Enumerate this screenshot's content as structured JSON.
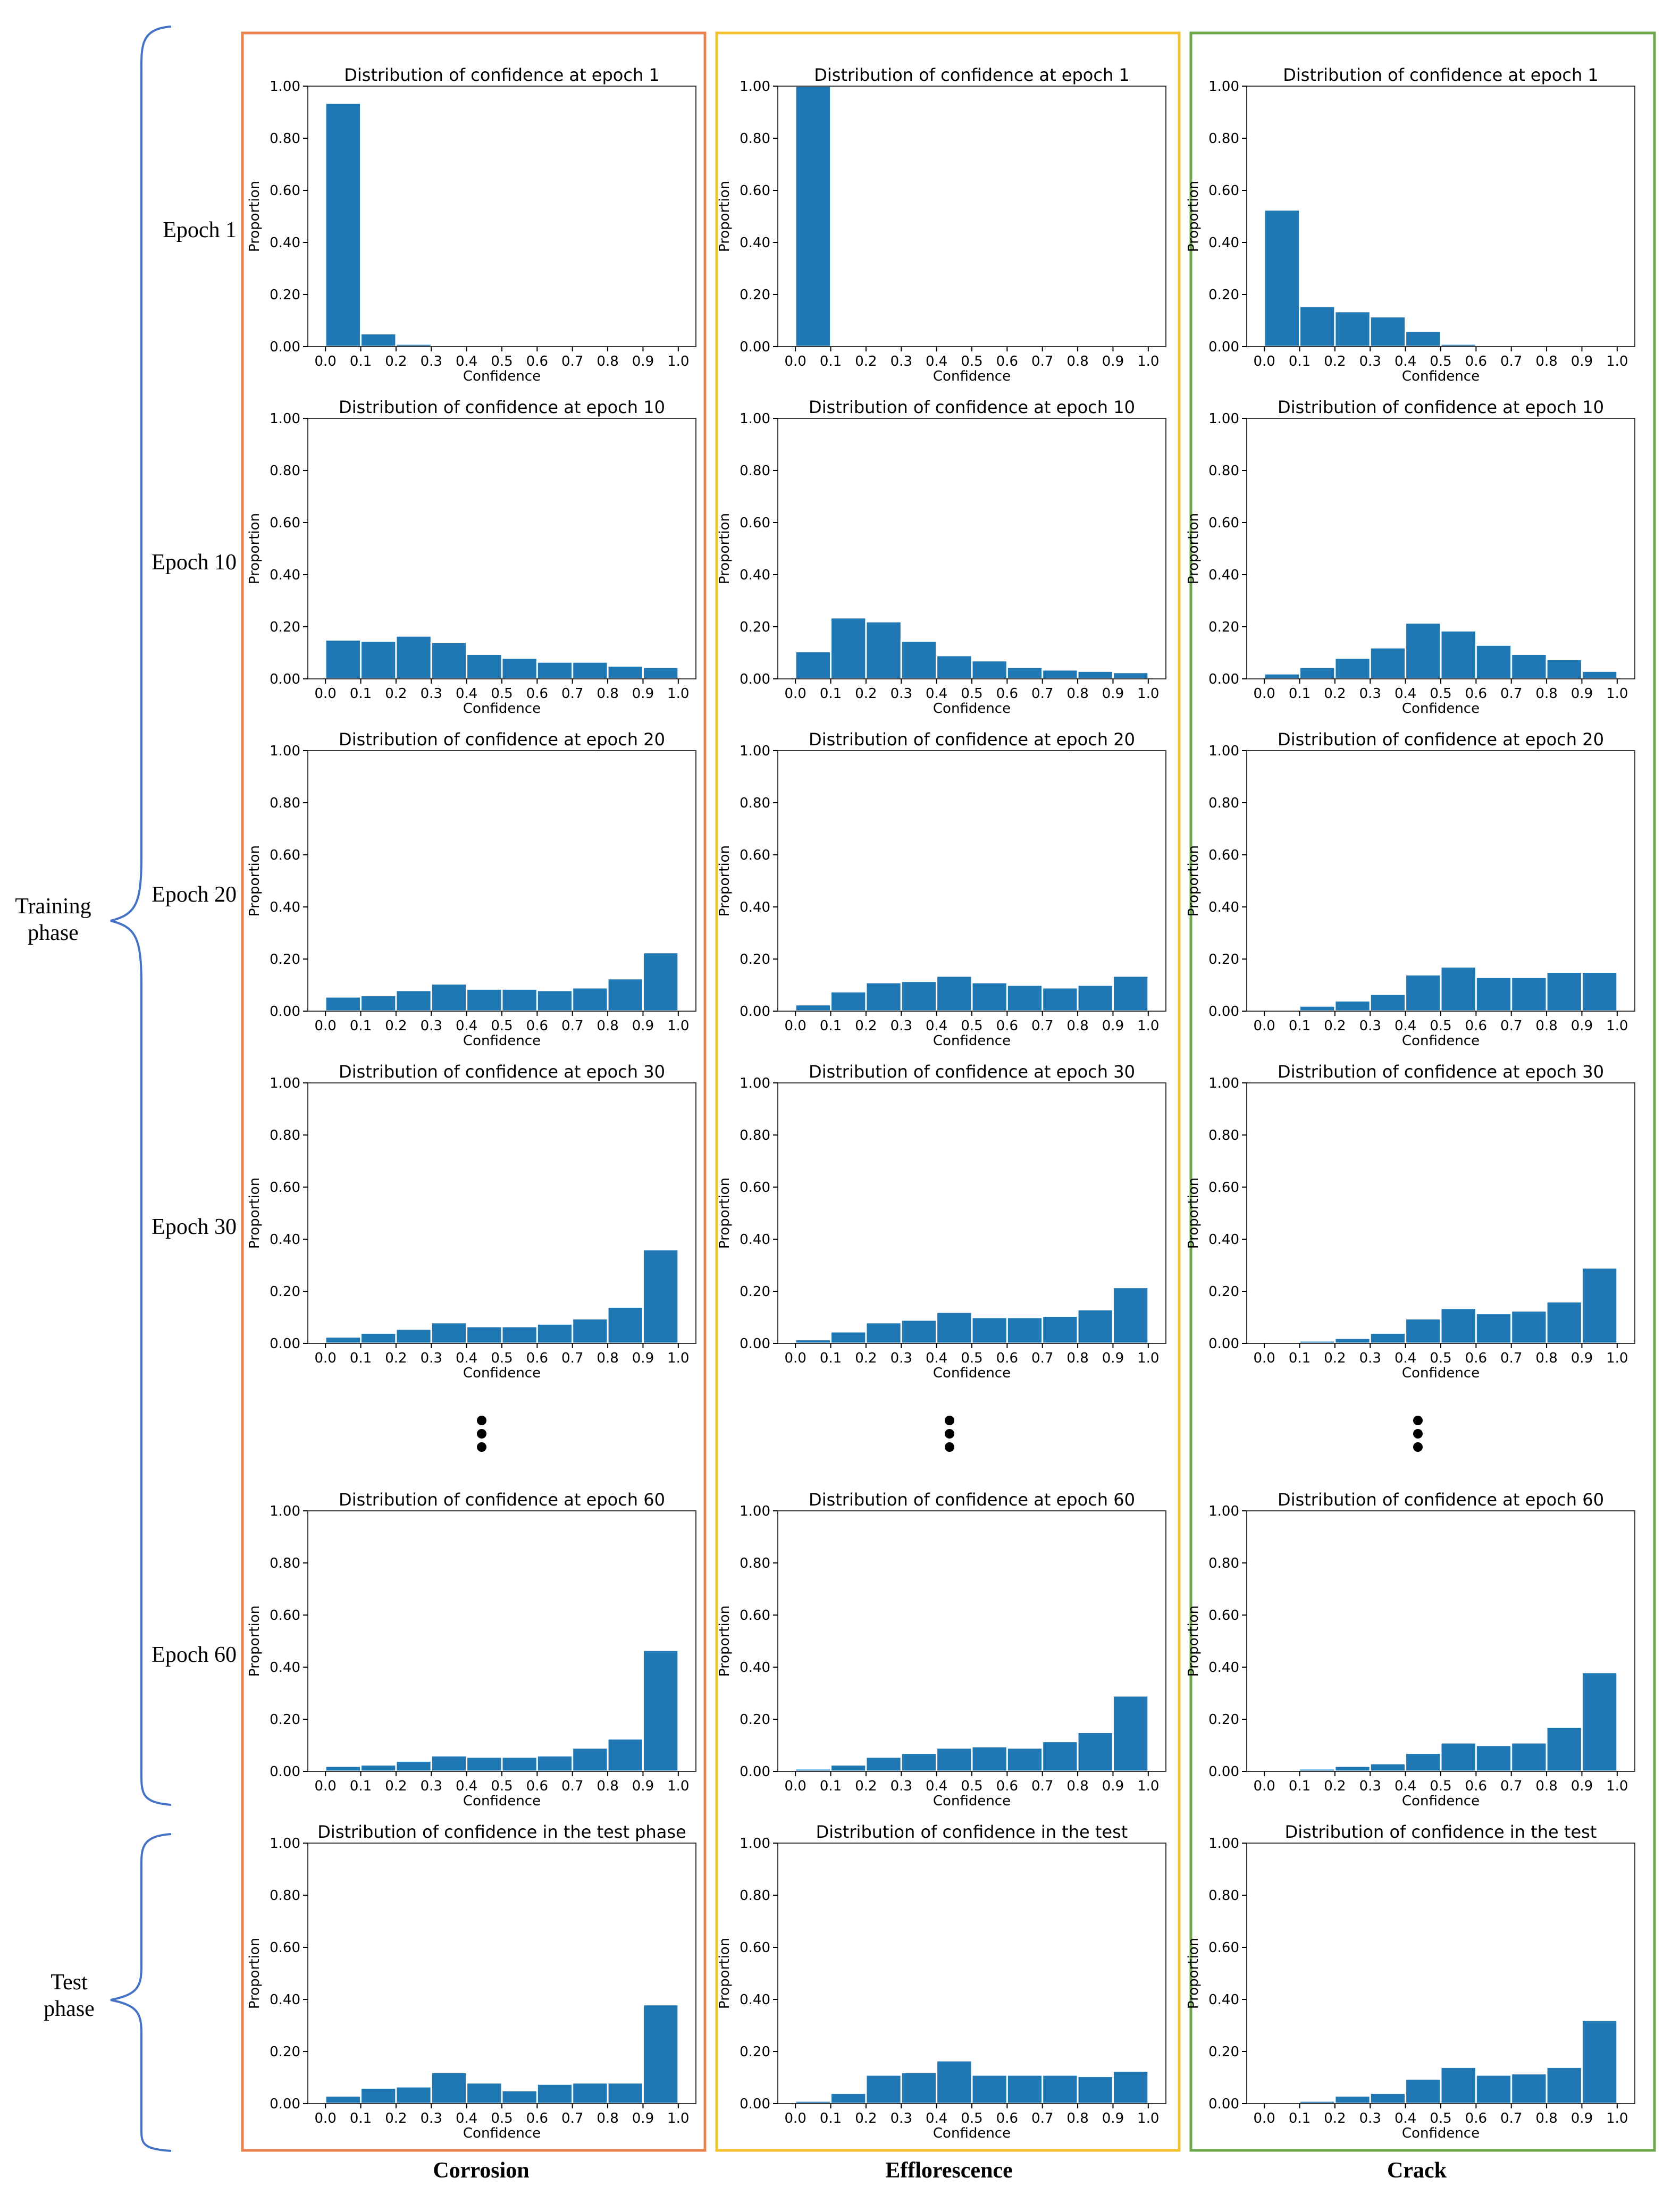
{
  "colors": {
    "bar": "#1f77b4",
    "corrosion_frame": "#E8834E",
    "efflorescence_frame": "#F2C230",
    "crack_frame": "#6FA84C",
    "brace": "#4472C4"
  },
  "columns": [
    "Corrosion",
    "Efflorescence",
    "Crack"
  ],
  "rows": [
    "Epoch 1",
    "Epoch 10",
    "Epoch 20",
    "Epoch 30",
    "Epoch 60",
    ""
  ],
  "phases": {
    "training": [
      "Training",
      "phase"
    ],
    "test": [
      "Test",
      "phase"
    ]
  },
  "ellipsis_icon": "vertical-ellipsis-icon",
  "chart_data": [
    {
      "id": "corrosion-epoch1",
      "type": "bar",
      "title": "Distribution of confidence at epoch 1",
      "xlabel": "Confidence",
      "ylabel": "Proportion",
      "ylim": [
        0,
        1
      ],
      "xlim": [
        -0.05,
        1.05
      ],
      "xticks": [
        "0.0",
        "0.1",
        "0.2",
        "0.3",
        "0.4",
        "0.5",
        "0.6",
        "0.7",
        "0.8",
        "0.9",
        "1.0"
      ],
      "yticks": [
        "0.00",
        "0.20",
        "0.40",
        "0.60",
        "0.80",
        "1.00"
      ],
      "bin_width": 0.1,
      "bin_starts": [
        0,
        0.1,
        0.2,
        0.3,
        0.4,
        0.5,
        0.6,
        0.7,
        0.8,
        0.9
      ],
      "values": [
        0.935,
        0.05,
        0.01,
        0.002,
        0.001,
        0,
        0,
        0,
        0,
        0
      ]
    },
    {
      "id": "efflorescence-epoch1",
      "type": "bar",
      "title": "Distribution of confidence at epoch 1",
      "xlabel": "Confidence",
      "ylabel": "Proportion",
      "ylim": [
        0,
        1
      ],
      "xlim": [
        -0.05,
        1.05
      ],
      "xticks": [
        "0.0",
        "0.1",
        "0.2",
        "0.3",
        "0.4",
        "0.5",
        "0.6",
        "0.7",
        "0.8",
        "0.9",
        "1.0"
      ],
      "yticks": [
        "0.00",
        "0.20",
        "0.40",
        "0.60",
        "0.80",
        "1.00"
      ],
      "bin_width": 0.1,
      "bin_starts": [
        0,
        0.1,
        0.2,
        0.3,
        0.4,
        0.5,
        0.6,
        0.7,
        0.8,
        0.9
      ],
      "values": [
        1.0,
        0,
        0,
        0,
        0,
        0,
        0,
        0,
        0,
        0
      ]
    },
    {
      "id": "crack-epoch1",
      "type": "bar",
      "title": "Distribution of confidence at epoch 1",
      "xlabel": "Confidence",
      "ylabel": "Proportion",
      "ylim": [
        0,
        1
      ],
      "xlim": [
        -0.05,
        1.05
      ],
      "xticks": [
        "0.0",
        "0.1",
        "0.2",
        "0.3",
        "0.4",
        "0.5",
        "0.6",
        "0.7",
        "0.8",
        "0.9",
        "1.0"
      ],
      "yticks": [
        "0.00",
        "0.20",
        "0.40",
        "0.60",
        "0.80",
        "1.00"
      ],
      "bin_width": 0.1,
      "bin_starts": [
        0,
        0.1,
        0.2,
        0.3,
        0.4,
        0.5,
        0.6,
        0.7,
        0.8,
        0.9
      ],
      "values": [
        0.525,
        0.155,
        0.135,
        0.115,
        0.06,
        0.01,
        0,
        0,
        0,
        0
      ]
    },
    {
      "id": "corrosion-epoch10",
      "type": "bar",
      "title": "Distribution of confidence at epoch 10",
      "xlabel": "Confidence",
      "ylabel": "Proportion",
      "ylim": [
        0,
        1
      ],
      "xlim": [
        -0.05,
        1.05
      ],
      "xticks": [
        "0.0",
        "0.1",
        "0.2",
        "0.3",
        "0.4",
        "0.5",
        "0.6",
        "0.7",
        "0.8",
        "0.9",
        "1.0"
      ],
      "yticks": [
        "0.00",
        "0.20",
        "0.40",
        "0.60",
        "0.80",
        "1.00"
      ],
      "bin_width": 0.1,
      "bin_starts": [
        0,
        0.1,
        0.2,
        0.3,
        0.4,
        0.5,
        0.6,
        0.7,
        0.8,
        0.9
      ],
      "values": [
        0.15,
        0.145,
        0.165,
        0.14,
        0.095,
        0.08,
        0.065,
        0.065,
        0.05,
        0.045
      ]
    },
    {
      "id": "efflorescence-epoch10",
      "type": "bar",
      "title": "Distribution of confidence at epoch 10",
      "xlabel": "Confidence",
      "ylabel": "Proportion",
      "ylim": [
        0,
        1
      ],
      "xlim": [
        -0.05,
        1.05
      ],
      "xticks": [
        "0.0",
        "0.1",
        "0.2",
        "0.3",
        "0.4",
        "0.5",
        "0.6",
        "0.7",
        "0.8",
        "0.9",
        "1.0"
      ],
      "yticks": [
        "0.00",
        "0.20",
        "0.40",
        "0.60",
        "0.80",
        "1.00"
      ],
      "bin_width": 0.1,
      "bin_starts": [
        0,
        0.1,
        0.2,
        0.3,
        0.4,
        0.5,
        0.6,
        0.7,
        0.8,
        0.9
      ],
      "values": [
        0.105,
        0.235,
        0.22,
        0.145,
        0.09,
        0.07,
        0.045,
        0.035,
        0.03,
        0.025
      ]
    },
    {
      "id": "crack-epoch10",
      "type": "bar",
      "title": "Distribution of confidence at epoch 10",
      "xlabel": "Confidence",
      "ylabel": "Proportion",
      "ylim": [
        0,
        1
      ],
      "xlim": [
        -0.05,
        1.05
      ],
      "xticks": [
        "0.0",
        "0.1",
        "0.2",
        "0.3",
        "0.4",
        "0.5",
        "0.6",
        "0.7",
        "0.8",
        "0.9",
        "1.0"
      ],
      "yticks": [
        "0.00",
        "0.20",
        "0.40",
        "0.60",
        "0.80",
        "1.00"
      ],
      "bin_width": 0.1,
      "bin_starts": [
        0,
        0.1,
        0.2,
        0.3,
        0.4,
        0.5,
        0.6,
        0.7,
        0.8,
        0.9
      ],
      "values": [
        0.02,
        0.045,
        0.08,
        0.12,
        0.215,
        0.185,
        0.13,
        0.095,
        0.075,
        0.03
      ]
    },
    {
      "id": "corrosion-epoch20",
      "type": "bar",
      "title": "Distribution of confidence at epoch 20",
      "xlabel": "Confidence",
      "ylabel": "Proportion",
      "ylim": [
        0,
        1
      ],
      "xlim": [
        -0.05,
        1.05
      ],
      "xticks": [
        "0.0",
        "0.1",
        "0.2",
        "0.3",
        "0.4",
        "0.5",
        "0.6",
        "0.7",
        "0.8",
        "0.9",
        "1.0"
      ],
      "yticks": [
        "0.00",
        "0.20",
        "0.40",
        "0.60",
        "0.80",
        "1.00"
      ],
      "bin_width": 0.1,
      "bin_starts": [
        0,
        0.1,
        0.2,
        0.3,
        0.4,
        0.5,
        0.6,
        0.7,
        0.8,
        0.9
      ],
      "values": [
        0.055,
        0.06,
        0.08,
        0.105,
        0.085,
        0.085,
        0.08,
        0.09,
        0.125,
        0.225
      ]
    },
    {
      "id": "efflorescence-epoch20",
      "type": "bar",
      "title": "Distribution of confidence at epoch 20",
      "xlabel": "Confidence",
      "ylabel": "Proportion",
      "ylim": [
        0,
        1
      ],
      "xlim": [
        -0.05,
        1.05
      ],
      "xticks": [
        "0.0",
        "0.1",
        "0.2",
        "0.3",
        "0.4",
        "0.5",
        "0.6",
        "0.7",
        "0.8",
        "0.9",
        "1.0"
      ],
      "yticks": [
        "0.00",
        "0.20",
        "0.40",
        "0.60",
        "0.80",
        "1.00"
      ],
      "bin_width": 0.1,
      "bin_starts": [
        0,
        0.1,
        0.2,
        0.3,
        0.4,
        0.5,
        0.6,
        0.7,
        0.8,
        0.9
      ],
      "values": [
        0.025,
        0.075,
        0.11,
        0.115,
        0.135,
        0.11,
        0.1,
        0.09,
        0.1,
        0.135
      ]
    },
    {
      "id": "crack-epoch20",
      "type": "bar",
      "title": "Distribution of confidence at epoch 20",
      "xlabel": "Confidence",
      "ylabel": "Proportion",
      "ylim": [
        0,
        1
      ],
      "xlim": [
        -0.05,
        1.05
      ],
      "xticks": [
        "0.0",
        "0.1",
        "0.2",
        "0.3",
        "0.4",
        "0.5",
        "0.6",
        "0.7",
        "0.8",
        "0.9",
        "1.0"
      ],
      "yticks": [
        "0.00",
        "0.20",
        "0.40",
        "0.60",
        "0.80",
        "1.00"
      ],
      "bin_width": 0.1,
      "bin_starts": [
        0,
        0.1,
        0.2,
        0.3,
        0.4,
        0.5,
        0.6,
        0.7,
        0.8,
        0.9
      ],
      "values": [
        0.005,
        0.02,
        0.04,
        0.065,
        0.14,
        0.17,
        0.13,
        0.13,
        0.15,
        0.15
      ]
    },
    {
      "id": "corrosion-epoch30",
      "type": "bar",
      "title": "Distribution of confidence at epoch 30",
      "xlabel": "Confidence",
      "ylabel": "Proportion",
      "ylim": [
        0,
        1
      ],
      "xlim": [
        -0.05,
        1.05
      ],
      "xticks": [
        "0.0",
        "0.1",
        "0.2",
        "0.3",
        "0.4",
        "0.5",
        "0.6",
        "0.7",
        "0.8",
        "0.9",
        "1.0"
      ],
      "yticks": [
        "0.00",
        "0.20",
        "0.40",
        "0.60",
        "0.80",
        "1.00"
      ],
      "bin_width": 0.1,
      "bin_starts": [
        0,
        0.1,
        0.2,
        0.3,
        0.4,
        0.5,
        0.6,
        0.7,
        0.8,
        0.9
      ],
      "values": [
        0.025,
        0.04,
        0.055,
        0.08,
        0.065,
        0.065,
        0.075,
        0.095,
        0.14,
        0.36
      ]
    },
    {
      "id": "efflorescence-epoch30",
      "type": "bar",
      "title": "Distribution of confidence at epoch 30",
      "xlabel": "Confidence",
      "ylabel": "Proportion",
      "ylim": [
        0,
        1
      ],
      "xlim": [
        -0.05,
        1.05
      ],
      "xticks": [
        "0.0",
        "0.1",
        "0.2",
        "0.3",
        "0.4",
        "0.5",
        "0.6",
        "0.7",
        "0.8",
        "0.9",
        "1.0"
      ],
      "yticks": [
        "0.00",
        "0.20",
        "0.40",
        "0.60",
        "0.80",
        "1.00"
      ],
      "bin_width": 0.1,
      "bin_starts": [
        0,
        0.1,
        0.2,
        0.3,
        0.4,
        0.5,
        0.6,
        0.7,
        0.8,
        0.9
      ],
      "values": [
        0.015,
        0.045,
        0.08,
        0.09,
        0.12,
        0.1,
        0.1,
        0.105,
        0.13,
        0.215
      ]
    },
    {
      "id": "crack-epoch30",
      "type": "bar",
      "title": "Distribution of confidence at epoch 30",
      "xlabel": "Confidence",
      "ylabel": "Proportion",
      "ylim": [
        0,
        1
      ],
      "xlim": [
        -0.05,
        1.05
      ],
      "xticks": [
        "0.0",
        "0.1",
        "0.2",
        "0.3",
        "0.4",
        "0.5",
        "0.6",
        "0.7",
        "0.8",
        "0.9",
        "1.0"
      ],
      "yticks": [
        "0.00",
        "0.20",
        "0.40",
        "0.60",
        "0.80",
        "1.00"
      ],
      "bin_width": 0.1,
      "bin_starts": [
        0,
        0.1,
        0.2,
        0.3,
        0.4,
        0.5,
        0.6,
        0.7,
        0.8,
        0.9
      ],
      "values": [
        0.003,
        0.01,
        0.02,
        0.04,
        0.095,
        0.135,
        0.115,
        0.125,
        0.16,
        0.29
      ]
    },
    {
      "id": "corrosion-epoch60",
      "type": "bar",
      "title": "Distribution of confidence at epoch 60",
      "xlabel": "Confidence",
      "ylabel": "Proportion",
      "ylim": [
        0,
        1
      ],
      "xlim": [
        -0.05,
        1.05
      ],
      "xticks": [
        "0.0",
        "0.1",
        "0.2",
        "0.3",
        "0.4",
        "0.5",
        "0.6",
        "0.7",
        "0.8",
        "0.9",
        "1.0"
      ],
      "yticks": [
        "0.00",
        "0.20",
        "0.40",
        "0.60",
        "0.80",
        "1.00"
      ],
      "bin_width": 0.1,
      "bin_starts": [
        0,
        0.1,
        0.2,
        0.3,
        0.4,
        0.5,
        0.6,
        0.7,
        0.8,
        0.9
      ],
      "values": [
        0.02,
        0.025,
        0.04,
        0.06,
        0.055,
        0.055,
        0.06,
        0.09,
        0.125,
        0.465
      ]
    },
    {
      "id": "efflorescence-epoch60",
      "type": "bar",
      "title": "Distribution of confidence at epoch 60",
      "xlabel": "Confidence",
      "ylabel": "Proportion",
      "ylim": [
        0,
        1
      ],
      "xlim": [
        -0.05,
        1.05
      ],
      "xticks": [
        "0.0",
        "0.1",
        "0.2",
        "0.3",
        "0.4",
        "0.5",
        "0.6",
        "0.7",
        "0.8",
        "0.9",
        "1.0"
      ],
      "yticks": [
        "0.00",
        "0.20",
        "0.40",
        "0.60",
        "0.80",
        "1.00"
      ],
      "bin_width": 0.1,
      "bin_starts": [
        0,
        0.1,
        0.2,
        0.3,
        0.4,
        0.5,
        0.6,
        0.7,
        0.8,
        0.9
      ],
      "values": [
        0.01,
        0.025,
        0.055,
        0.07,
        0.09,
        0.095,
        0.09,
        0.115,
        0.15,
        0.29
      ]
    },
    {
      "id": "crack-epoch60",
      "type": "bar",
      "title": "Distribution of confidence at epoch 60",
      "xlabel": "Confidence",
      "ylabel": "Proportion",
      "ylim": [
        0,
        1
      ],
      "xlim": [
        -0.05,
        1.05
      ],
      "xticks": [
        "0.0",
        "0.1",
        "0.2",
        "0.3",
        "0.4",
        "0.5",
        "0.6",
        "0.7",
        "0.8",
        "0.9",
        "1.0"
      ],
      "yticks": [
        "0.00",
        "0.20",
        "0.40",
        "0.60",
        "0.80",
        "1.00"
      ],
      "bin_width": 0.1,
      "bin_starts": [
        0,
        0.1,
        0.2,
        0.3,
        0.4,
        0.5,
        0.6,
        0.7,
        0.8,
        0.9
      ],
      "values": [
        0.003,
        0.01,
        0.02,
        0.03,
        0.07,
        0.11,
        0.1,
        0.11,
        0.17,
        0.38
      ]
    },
    {
      "id": "corrosion-test",
      "type": "bar",
      "title": "Distribution of confidence in the test phase",
      "xlabel": "Confidence",
      "ylabel": "Proportion",
      "ylim": [
        0,
        1
      ],
      "xlim": [
        -0.05,
        1.05
      ],
      "xticks": [
        "0.0",
        "0.1",
        "0.2",
        "0.3",
        "0.4",
        "0.5",
        "0.6",
        "0.7",
        "0.8",
        "0.9",
        "1.0"
      ],
      "yticks": [
        "0.00",
        "0.20",
        "0.40",
        "0.60",
        "0.80",
        "1.00"
      ],
      "bin_width": 0.1,
      "bin_starts": [
        0,
        0.1,
        0.2,
        0.3,
        0.4,
        0.5,
        0.6,
        0.7,
        0.8,
        0.9
      ],
      "values": [
        0.03,
        0.06,
        0.065,
        0.12,
        0.08,
        0.05,
        0.075,
        0.08,
        0.08,
        0.38
      ]
    },
    {
      "id": "efflorescence-test",
      "type": "bar",
      "title": "Distribution of confidence in the test",
      "xlabel": "Confidence",
      "ylabel": "Proportion",
      "ylim": [
        0,
        1
      ],
      "xlim": [
        -0.05,
        1.05
      ],
      "xticks": [
        "0.0",
        "0.1",
        "0.2",
        "0.3",
        "0.4",
        "0.5",
        "0.6",
        "0.7",
        "0.8",
        "0.9",
        "1.0"
      ],
      "yticks": [
        "0.00",
        "0.20",
        "0.40",
        "0.60",
        "0.80",
        "1.00"
      ],
      "bin_width": 0.1,
      "bin_starts": [
        0,
        0.1,
        0.2,
        0.3,
        0.4,
        0.5,
        0.6,
        0.7,
        0.8,
        0.9
      ],
      "values": [
        0.01,
        0.04,
        0.11,
        0.12,
        0.165,
        0.11,
        0.11,
        0.11,
        0.105,
        0.125
      ]
    },
    {
      "id": "crack-test",
      "type": "bar",
      "title": "Distribution of confidence in the test",
      "xlabel": "Confidence",
      "ylabel": "Proportion",
      "ylim": [
        0,
        1
      ],
      "xlim": [
        -0.05,
        1.05
      ],
      "xticks": [
        "0.0",
        "0.1",
        "0.2",
        "0.3",
        "0.4",
        "0.5",
        "0.6",
        "0.7",
        "0.8",
        "0.9",
        "1.0"
      ],
      "yticks": [
        "0.00",
        "0.20",
        "0.40",
        "0.60",
        "0.80",
        "1.00"
      ],
      "bin_width": 0.1,
      "bin_starts": [
        0,
        0.1,
        0.2,
        0.3,
        0.4,
        0.5,
        0.6,
        0.7,
        0.8,
        0.9
      ],
      "values": [
        0.003,
        0.01,
        0.03,
        0.04,
        0.095,
        0.14,
        0.11,
        0.115,
        0.14,
        0.32
      ]
    }
  ]
}
